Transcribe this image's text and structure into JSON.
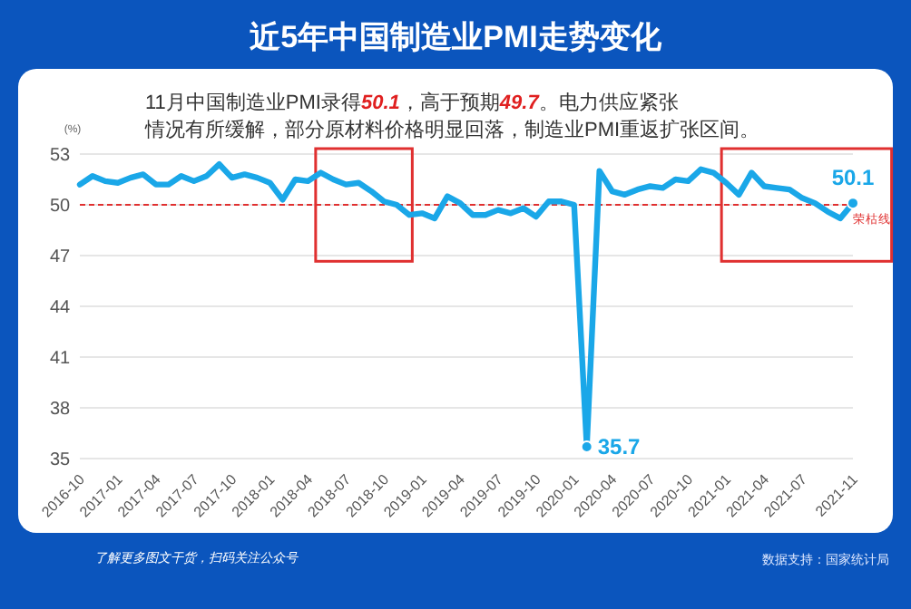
{
  "chart_data": {
    "type": "line",
    "title": "近5年中国制造业PMI走势变化",
    "subtitle": "11月中国制造业PMI录得50.1，高于预期49.7。电力供应紧张情况有所缓解，部分原材料价格明显回落，制造业PMI重返扩张区间。",
    "ylabel": "(%)",
    "categories": [
      "2016-10",
      null,
      null,
      "2017-01",
      null,
      null,
      "2017-04",
      null,
      null,
      "2017-07",
      null,
      null,
      "2017-10",
      null,
      null,
      "2018-01",
      null,
      null,
      "2018-04",
      null,
      null,
      "2018-07",
      null,
      null,
      "2018-10",
      null,
      null,
      "2019-01",
      null,
      null,
      "2019-04",
      null,
      null,
      "2019-07",
      null,
      null,
      "2019-10",
      null,
      null,
      "2020-01",
      null,
      null,
      "2020-04",
      null,
      null,
      "2020-07",
      null,
      null,
      "2020-10",
      null,
      null,
      "2021-01",
      null,
      null,
      "2021-04",
      null,
      null,
      "2021-07",
      null,
      null,
      null,
      "2021-11"
    ],
    "series": [
      {
        "color": "#1aa7e8",
        "values": [
          51.2,
          51.7,
          51.4,
          51.3,
          51.6,
          51.8,
          51.2,
          51.2,
          51.7,
          51.4,
          51.7,
          52.4,
          51.6,
          51.8,
          51.6,
          51.3,
          50.3,
          51.5,
          51.4,
          51.9,
          51.5,
          51.2,
          51.3,
          50.8,
          50.2,
          50.0,
          49.4,
          49.5,
          49.2,
          50.5,
          50.1,
          49.4,
          49.4,
          49.7,
          49.5,
          49.8,
          49.3,
          50.2,
          50.2,
          50.0,
          35.7,
          52.0,
          50.8,
          50.6,
          50.9,
          51.1,
          51.0,
          51.5,
          51.4,
          52.1,
          51.9,
          51.3,
          50.6,
          51.9,
          51.1,
          51.0,
          50.9,
          50.4,
          50.1,
          49.6,
          49.2,
          50.1
        ]
      }
    ],
    "ylim": [
      35,
      53
    ],
    "yticks": [
      35,
      38,
      41,
      44,
      47,
      50,
      53
    ],
    "grid": "y",
    "line_style": "solid",
    "marker": "none",
    "ref_lines": [
      {
        "axis": "y",
        "value": 50,
        "label": "荣枯线",
        "color": "#e03030",
        "line_style": "dashed"
      }
    ],
    "annotations": [
      {
        "text": "50.1",
        "x": "2021-11",
        "y": 50.1
      },
      "35.7",
      "了解更多图文干货，扫码关注公众号",
      "数据支持：国家统计局"
    ]
  }
}
